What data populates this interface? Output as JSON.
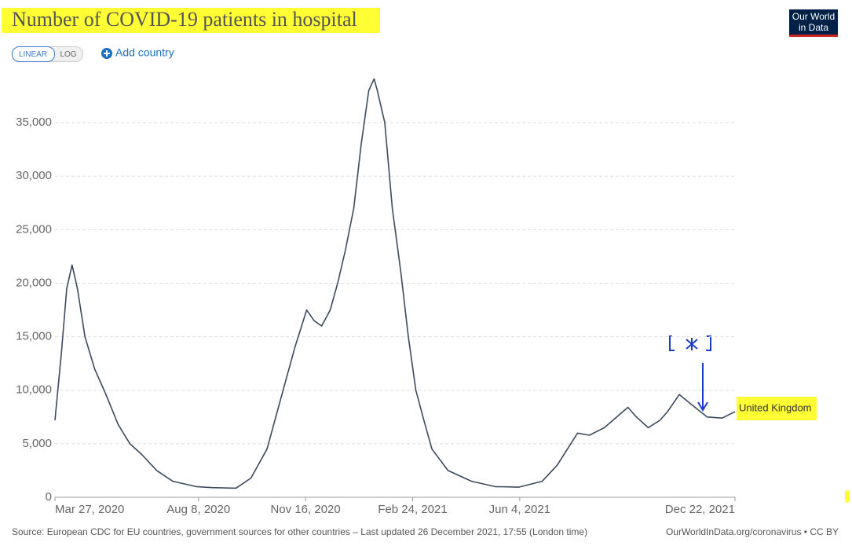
{
  "chart_data": {
    "type": "line",
    "title": "Number of COVID-19 patients in hospital",
    "x": [
      "2020-03-27",
      "2020-04-02",
      "2020-04-07",
      "2020-04-12",
      "2020-04-17",
      "2020-04-24",
      "2020-05-03",
      "2020-05-14",
      "2020-05-25",
      "2020-06-05",
      "2020-06-16",
      "2020-06-30",
      "2020-07-15",
      "2020-08-06",
      "2020-08-21",
      "2020-09-12",
      "2020-09-26",
      "2020-10-11",
      "2020-10-26",
      "2020-11-06",
      "2020-11-17",
      "2020-11-24",
      "2020-12-01",
      "2020-12-09",
      "2020-12-16",
      "2020-12-23",
      "2020-12-31",
      "2021-01-07",
      "2021-01-14",
      "2021-01-19",
      "2021-01-22",
      "2021-01-29",
      "2021-02-05",
      "2021-02-13",
      "2021-02-20",
      "2021-02-27",
      "2021-03-07",
      "2021-03-14",
      "2021-03-29",
      "2021-04-20",
      "2021-05-12",
      "2021-06-03",
      "2021-06-25",
      "2021-07-09",
      "2021-07-28",
      "2021-08-08",
      "2021-08-22",
      "2021-09-13",
      "2021-09-21",
      "2021-10-02",
      "2021-10-13",
      "2021-10-20",
      "2021-10-31",
      "2021-11-11",
      "2021-11-26",
      "2021-12-10",
      "2021-12-22"
    ],
    "series": [
      {
        "name": "United Kingdom",
        "color": "#3b4a5e",
        "values": [
          7200,
          13500,
          19500,
          21700,
          19500,
          15000,
          12000,
          9500,
          6800,
          5000,
          4000,
          2500,
          1500,
          1000,
          900,
          850,
          1800,
          4500,
          10000,
          14000,
          17500,
          16500,
          16000,
          17500,
          20000,
          23000,
          27000,
          33000,
          38000,
          39100,
          38000,
          35000,
          27000,
          21000,
          15000,
          10000,
          7000,
          4500,
          2500,
          1500,
          1000,
          950,
          1500,
          3000,
          6000,
          5800,
          6500,
          8400,
          7500,
          6500,
          7200,
          8000,
          9600,
          8700,
          7500,
          7400,
          8000
        ]
      }
    ],
    "xlim": [
      "2020-03-27",
      "2021-12-22"
    ],
    "xticks": [
      {
        "value": "2020-03-27",
        "label": "Mar 27, 2020"
      },
      {
        "value": "2020-08-08",
        "label": "Aug 8, 2020"
      },
      {
        "value": "2020-11-16",
        "label": "Nov 16, 2020"
      },
      {
        "value": "2021-02-24",
        "label": "Feb 24, 2021"
      },
      {
        "value": "2021-06-04",
        "label": "Jun 4, 2021"
      },
      {
        "value": "2021-12-22",
        "label": "Dec 22, 2021"
      }
    ],
    "ylim": [
      0,
      40000
    ],
    "yticks": [
      0,
      {
        "value": 5000,
        "label": "5,000"
      },
      {
        "value": 10000,
        "label": "10,000"
      },
      {
        "value": 15000,
        "label": "15,000"
      },
      {
        "value": 20000,
        "label": "20,000"
      },
      {
        "value": 25000,
        "label": "25,000"
      },
      {
        "value": 30000,
        "label": "30,000"
      },
      {
        "value": 35000,
        "label": "35,000"
      }
    ],
    "grid": true
  },
  "controls": {
    "linear": "LINEAR",
    "log": "LOG",
    "add_country": "Add country"
  },
  "logo": [
    "Our World",
    "in Data"
  ],
  "source": "Source: European CDC for EU countries, government sources for other countries – Last updated 26 December 2021, 17:55 (London time)",
  "license": "OurWorldInData.org/coronavirus • CC BY"
}
